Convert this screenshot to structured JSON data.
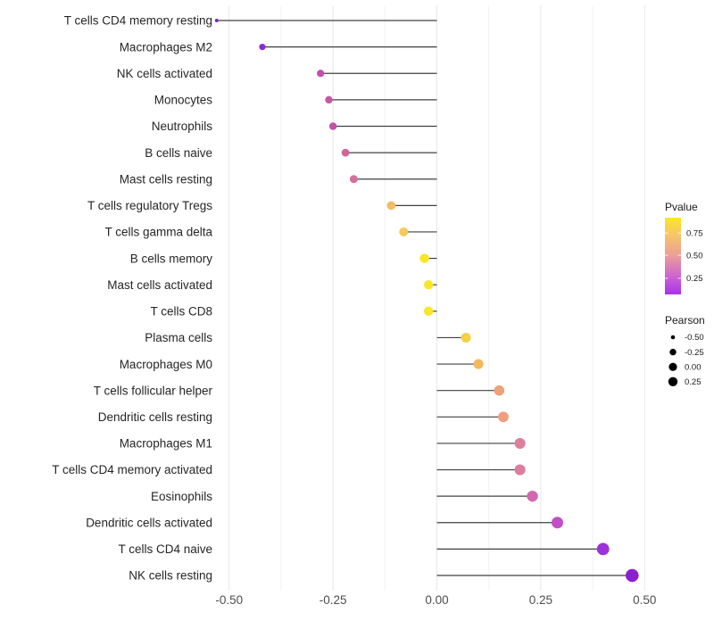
{
  "chart_data": {
    "type": "lollipop",
    "orientation": "horizontal",
    "title": "",
    "xlabel": "",
    "ylabel": "",
    "grid": "on",
    "xlim": [
      -0.565,
      0.525
    ],
    "x_major_ticks": [
      {
        "value": -0.5,
        "label": "-0.50"
      },
      {
        "value": -0.25,
        "label": "-0.25"
      },
      {
        "value": 0.0,
        "label": "0.00"
      },
      {
        "value": 0.25,
        "label": "0.25"
      },
      {
        "value": 0.5,
        "label": "0.50"
      }
    ],
    "x_minor_ticks": [
      -0.375,
      -0.125,
      0.125,
      0.375
    ],
    "baseline_value": 0.0,
    "color_encodes": "Pvalue",
    "size_encodes": "Pearson",
    "points": [
      {
        "label": "T cells CD4 memory resting",
        "pearson": -0.53,
        "color": "#7a2bc0",
        "r": 2.0
      },
      {
        "label": "Macrophages M2",
        "pearson": -0.42,
        "color": "#8a2dd0",
        "r": 3.6
      },
      {
        "label": "NK cells activated",
        "pearson": -0.28,
        "color": "#c050ab",
        "r": 4.1
      },
      {
        "label": "Monocytes",
        "pearson": -0.26,
        "color": "#c558a6",
        "r": 4.2
      },
      {
        "label": "Neutrophils",
        "pearson": -0.25,
        "color": "#c253a8",
        "r": 4.25
      },
      {
        "label": "B cells naive",
        "pearson": -0.22,
        "color": "#d0659e",
        "r": 4.4
      },
      {
        "label": "Mast cells resting",
        "pearson": -0.2,
        "color": "#d4709c",
        "r": 4.5
      },
      {
        "label": "T cells regulatory  Tregs",
        "pearson": -0.11,
        "color": "#f3bc68",
        "r": 4.9
      },
      {
        "label": "T cells gamma delta",
        "pearson": -0.08,
        "color": "#f6ca5a",
        "r": 5.0
      },
      {
        "label": "B cells memory",
        "pearson": -0.03,
        "color": "#f9e626",
        "r": 5.2
      },
      {
        "label": "Mast cells activated",
        "pearson": -0.02,
        "color": "#fae52b",
        "r": 5.2
      },
      {
        "label": "T cells CD8",
        "pearson": -0.02,
        "color": "#f9e52b",
        "r": 5.2
      },
      {
        "label": "Plasma cells",
        "pearson": 0.07,
        "color": "#f5d147",
        "r": 5.5
      },
      {
        "label": "Macrophages M0",
        "pearson": 0.1,
        "color": "#f1b95f",
        "r": 5.6
      },
      {
        "label": "T cells follicular helper",
        "pearson": 0.15,
        "color": "#efa178",
        "r": 5.8
      },
      {
        "label": "Dendritic cells resting",
        "pearson": 0.16,
        "color": "#eda07c",
        "r": 5.9
      },
      {
        "label": "Macrophages M1",
        "pearson": 0.2,
        "color": "#de7f9b",
        "r": 6.1
      },
      {
        "label": "T cells CD4 memory activated",
        "pearson": 0.2,
        "color": "#dd7e9e",
        "r": 6.1
      },
      {
        "label": "Eosinophils",
        "pearson": 0.23,
        "color": "#d268b2",
        "r": 6.2
      },
      {
        "label": "Dendritic cells activated",
        "pearson": 0.29,
        "color": "#c44ec6",
        "r": 6.5
      },
      {
        "label": "T cells CD4 naive",
        "pearson": 0.4,
        "color": "#9c32d8",
        "r": 6.9
      },
      {
        "label": "NK cells resting",
        "pearson": 0.47,
        "color": "#8d1fd3",
        "r": 7.3
      }
    ],
    "legend": {
      "pvalue": {
        "title": "Pvalue",
        "gradient_stops": [
          {
            "offset": 0.0,
            "color": "#f9e822"
          },
          {
            "offset": 0.2,
            "color": "#f7c964"
          },
          {
            "offset": 0.49,
            "color": "#ec9e98"
          },
          {
            "offset": 0.79,
            "color": "#c95ed4"
          },
          {
            "offset": 1.0,
            "color": "#a832e8"
          }
        ],
        "ticks": [
          {
            "label": "0.75",
            "t": 0.2
          },
          {
            "label": "0.50",
            "t": 0.49
          },
          {
            "label": "0.25",
            "t": 0.79
          }
        ]
      },
      "pearson": {
        "title": "Pearson",
        "items": [
          {
            "label": "-0.50",
            "r": 2.3
          },
          {
            "label": "-0.25",
            "r": 3.7
          },
          {
            "label": "0.00",
            "r": 4.6
          },
          {
            "label": "0.25",
            "r": 5.2
          }
        ]
      }
    },
    "style": {
      "grid_major_color": "#e7e7e7",
      "grid_minor_color": "#f1f1f1",
      "stem_color": "#404040",
      "category_label_color": "#262626",
      "tick_label_color": "#4d4d4d",
      "legend_text_color": "#1a1a1a",
      "legend_dot_color": "#000000"
    }
  }
}
